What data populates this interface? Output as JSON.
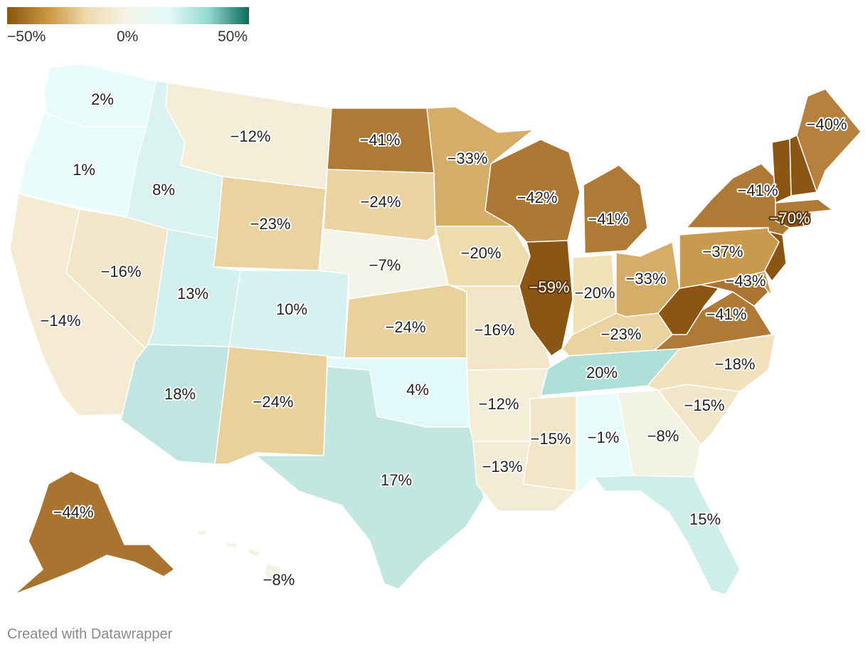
{
  "legend": {
    "colors": [
      "#8a5510",
      "#c9963f",
      "#efdcae",
      "#f5f4e8",
      "#e4fbfb",
      "#93d8cf",
      "#0b6b5e"
    ],
    "ticks": [
      "−50%",
      "0%",
      "50%"
    ]
  },
  "credit": "Created with Datawrapper",
  "states": [
    {
      "id": "WA",
      "value": "2%",
      "color": "#e7fbfb"
    },
    {
      "id": "OR",
      "value": "1%",
      "color": "#e9fcfc"
    },
    {
      "id": "CA",
      "value": "−14%",
      "color": "#f5ebd2"
    },
    {
      "id": "NV",
      "value": "−16%",
      "color": "#f3e6c8"
    },
    {
      "id": "ID",
      "value": "8%",
      "color": "#daf3f1"
    },
    {
      "id": "MT",
      "value": "−12%",
      "color": "#f4edd7"
    },
    {
      "id": "WY",
      "value": "−23%",
      "color": "#ebd29e"
    },
    {
      "id": "UT",
      "value": "13%",
      "color": "#d2f0ee"
    },
    {
      "id": "CO",
      "value": "10%",
      "color": "#d5f2f0"
    },
    {
      "id": "AZ",
      "value": "18%",
      "color": "#c1e6e1"
    },
    {
      "id": "NM",
      "value": "−24%",
      "color": "#ead09b"
    },
    {
      "id": "ND",
      "value": "−41%",
      "color": "#ae7a36"
    },
    {
      "id": "SD",
      "value": "−24%",
      "color": "#ecd3a1"
    },
    {
      "id": "NE",
      "value": "−7%",
      "color": "#f4f5e8"
    },
    {
      "id": "KS",
      "value": "−24%",
      "color": "#ead09b"
    },
    {
      "id": "OK",
      "value": "4%",
      "color": "#e2f9f9"
    },
    {
      "id": "TX",
      "value": "17%",
      "color": "#c2e7e1"
    },
    {
      "id": "MN",
      "value": "−33%",
      "color": "#d6ad68"
    },
    {
      "id": "IA",
      "value": "−20%",
      "color": "#efdcad"
    },
    {
      "id": "MO",
      "value": "−16%",
      "color": "#f3e6c8"
    },
    {
      "id": "AR",
      "value": "−12%",
      "color": "#f4edd7"
    },
    {
      "id": "LA",
      "value": "−13%",
      "color": "#f3ebd3"
    },
    {
      "id": "WI",
      "value": "−42%",
      "color": "#ad7734"
    },
    {
      "id": "IL",
      "value": "−59%",
      "color": "#8b5513"
    },
    {
      "id": "MI",
      "value": "−41%",
      "color": "#ae7a36"
    },
    {
      "id": "IN",
      "value": "−20%",
      "color": "#f2e2b8"
    },
    {
      "id": "OH",
      "value": "−33%",
      "color": "#d6ad68"
    },
    {
      "id": "KY",
      "value": "−23%",
      "color": "#ebd29e"
    },
    {
      "id": "TN",
      "value": "20%",
      "color": "#aee0d9"
    },
    {
      "id": "MS",
      "value": "−15%",
      "color": "#f3e6c8"
    },
    {
      "id": "AL",
      "value": "−1%",
      "color": "#e8fbfb"
    },
    {
      "id": "GA",
      "value": "−8%",
      "color": "#f3f3e3"
    },
    {
      "id": "FL",
      "value": "15%",
      "color": "#cdeee9"
    },
    {
      "id": "SC",
      "value": "−15%",
      "color": "#f3e6c8"
    },
    {
      "id": "NC",
      "value": "−18%",
      "color": "#f1e2bd"
    },
    {
      "id": "VA",
      "value": "−41%",
      "color": "#ae7a36"
    },
    {
      "id": "WV",
      "value": "",
      "color": "#8b5513"
    },
    {
      "id": "MD",
      "value": "−43%",
      "color": "#ab7531"
    },
    {
      "id": "DE",
      "value": "",
      "color": "#c9963f"
    },
    {
      "id": "PA",
      "value": "−37%",
      "color": "#c8994f"
    },
    {
      "id": "NJ",
      "value": "",
      "color": "#8b5513"
    },
    {
      "id": "NY",
      "value": "−41%",
      "color": "#ae7a36"
    },
    {
      "id": "CT",
      "value": "−70%",
      "color": "#8a5510"
    },
    {
      "id": "RI",
      "value": "",
      "color": "#8a5510"
    },
    {
      "id": "MA",
      "value": "",
      "color": "#ae7a36"
    },
    {
      "id": "VT",
      "value": "",
      "color": "#8b5513"
    },
    {
      "id": "NH",
      "value": "",
      "color": "#8b5513"
    },
    {
      "id": "ME",
      "value": "−40%",
      "color": "#b6813e"
    },
    {
      "id": "AK",
      "value": "−44%",
      "color": "#a97330"
    },
    {
      "id": "HI",
      "value": "−8%",
      "color": "#f3f3e3"
    }
  ]
}
